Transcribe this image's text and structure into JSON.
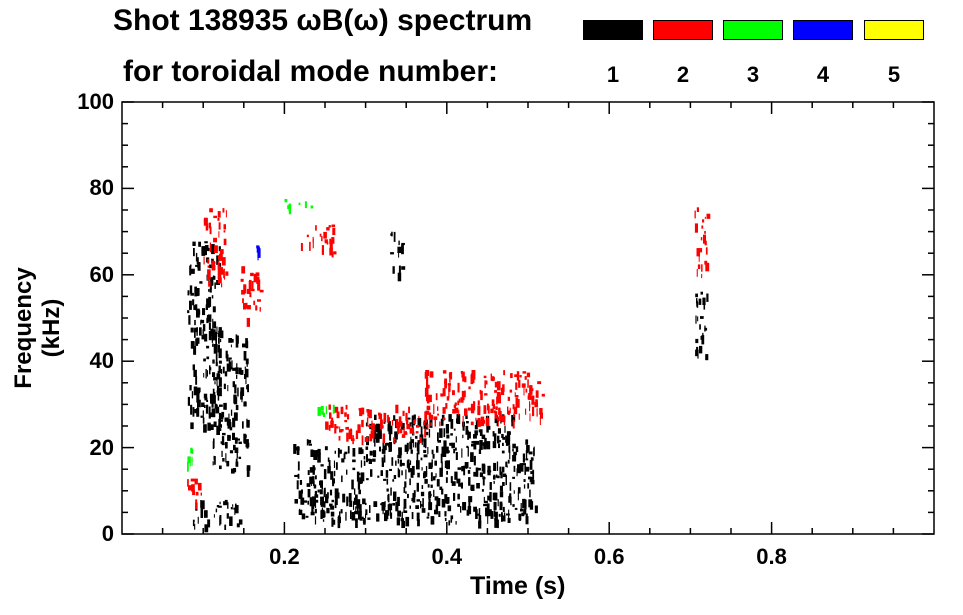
{
  "chart_data": {
    "type": "heatmap",
    "title_line1": "Shot 138935 ωB(ω) spectrum",
    "title_line2": "for toroidal mode number:",
    "xlabel": "Time (s)",
    "ylabel": "Frequency (kHz)",
    "xlim": [
      0.0,
      1.0
    ],
    "ylim": [
      0,
      100
    ],
    "xticks": [
      0.2,
      0.4,
      0.6,
      0.8
    ],
    "xtick_labels": [
      "0.2",
      "0.4",
      "0.6",
      "0.8"
    ],
    "yticks": [
      0,
      20,
      40,
      60,
      80,
      100
    ],
    "ytick_labels": [
      "0",
      "20",
      "40",
      "60",
      "80",
      "100"
    ],
    "legend": [
      {
        "label": "1",
        "color": "#000000"
      },
      {
        "label": "2",
        "color": "#ff0000"
      },
      {
        "label": "3",
        "color": "#00ff00"
      },
      {
        "label": "4",
        "color": "#0000ff"
      },
      {
        "label": "5",
        "color": "#ffff00"
      }
    ],
    "regions": [
      {
        "mode": 1,
        "t": [
          0.08,
          0.12
        ],
        "f": [
          25,
          68
        ]
      },
      {
        "mode": 1,
        "t": [
          0.11,
          0.155
        ],
        "f": [
          14,
          48
        ]
      },
      {
        "mode": 1,
        "t": [
          0.085,
          0.15
        ],
        "f": [
          2,
          8
        ]
      },
      {
        "mode": 1,
        "t": [
          0.21,
          0.51
        ],
        "f": [
          3,
          22
        ]
      },
      {
        "mode": 1,
        "t": [
          0.3,
          0.48
        ],
        "f": [
          20,
          28
        ]
      },
      {
        "mode": 1,
        "t": [
          0.705,
          0.72
        ],
        "f": [
          40,
          58
        ]
      },
      {
        "mode": 1,
        "t": [
          0.33,
          0.345
        ],
        "f": [
          60,
          70
        ]
      },
      {
        "mode": 2,
        "t": [
          0.1,
          0.13
        ],
        "f": [
          58,
          76
        ]
      },
      {
        "mode": 2,
        "t": [
          0.08,
          0.1
        ],
        "f": [
          8,
          14
        ]
      },
      {
        "mode": 2,
        "t": [
          0.22,
          0.26
        ],
        "f": [
          65,
          72
        ]
      },
      {
        "mode": 2,
        "t": [
          0.25,
          0.38
        ],
        "f": [
          22,
          30
        ]
      },
      {
        "mode": 2,
        "t": [
          0.37,
          0.52
        ],
        "f": [
          26,
          38
        ]
      },
      {
        "mode": 2,
        "t": [
          0.705,
          0.72
        ],
        "f": [
          60,
          76
        ]
      },
      {
        "mode": 2,
        "t": [
          0.145,
          0.17
        ],
        "f": [
          50,
          62
        ]
      },
      {
        "mode": 3,
        "t": [
          0.2,
          0.24
        ],
        "f": [
          76,
          78
        ]
      },
      {
        "mode": 3,
        "t": [
          0.08,
          0.09
        ],
        "f": [
          16,
          20
        ]
      },
      {
        "mode": 3,
        "t": [
          0.24,
          0.26
        ],
        "f": [
          28,
          30
        ]
      },
      {
        "mode": 4,
        "t": [
          0.165,
          0.17
        ],
        "f": [
          65,
          67
        ]
      }
    ]
  }
}
